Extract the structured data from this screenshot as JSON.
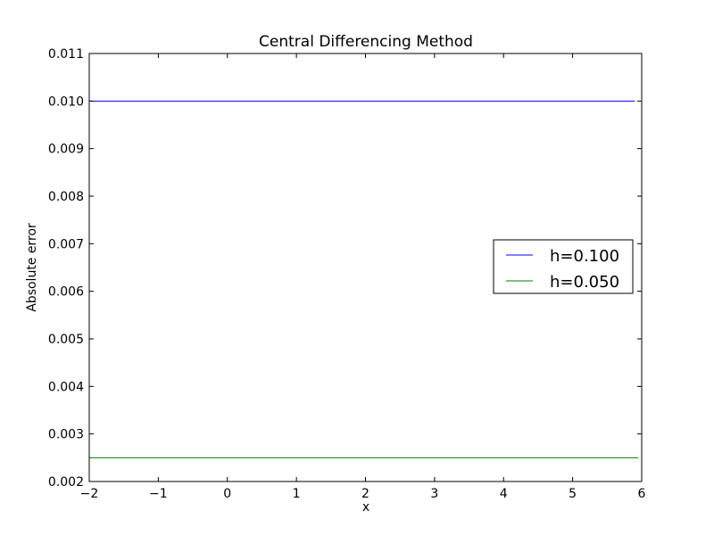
{
  "chart_data": {
    "type": "line",
    "title": "Central Differencing Method",
    "xlabel": "x",
    "ylabel": "Absolute error",
    "xlim": [
      -2,
      6
    ],
    "ylim": [
      0.002,
      0.011
    ],
    "xticks": [
      -2,
      -1,
      0,
      1,
      2,
      3,
      4,
      5,
      6
    ],
    "xtick_labels": [
      "−2",
      "−1",
      "0",
      "1",
      "2",
      "3",
      "4",
      "5",
      "6"
    ],
    "yticks": [
      0.002,
      0.003,
      0.004,
      0.005,
      0.006,
      0.007,
      0.008,
      0.009,
      0.01,
      0.011
    ],
    "ytick_labels": [
      "0.002",
      "0.003",
      "0.004",
      "0.005",
      "0.006",
      "0.007",
      "0.008",
      "0.009",
      "0.010",
      "0.011"
    ],
    "grid": false,
    "legend_position": "center-right",
    "series": [
      {
        "name": "h=0.100",
        "color": "#0000ff",
        "x": [
          -2,
          5.9
        ],
        "y": [
          0.01,
          0.01
        ]
      },
      {
        "name": "h=0.050",
        "color": "#008000",
        "x": [
          -2,
          5.95
        ],
        "y": [
          0.0025,
          0.0025
        ]
      }
    ]
  }
}
